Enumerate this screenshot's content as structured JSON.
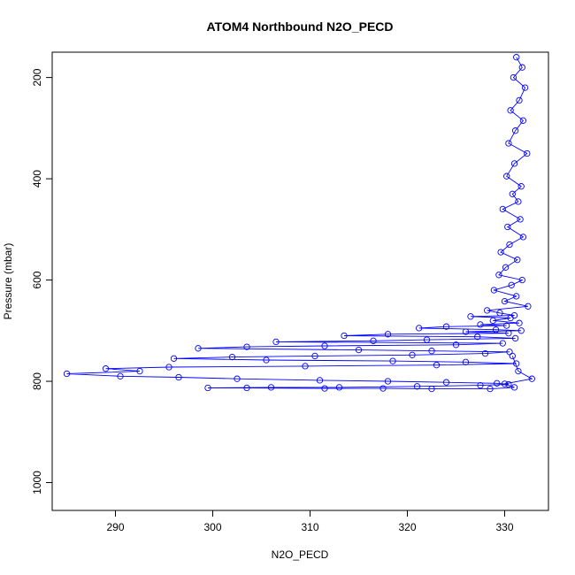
{
  "chart_data": {
    "type": "scatter",
    "title": "ATOM4 Northbound N2O_PECD",
    "xlabel": "N2O_PECD",
    "ylabel": "Pressure (mbar)",
    "xlim": [
      283.5,
      334.5
    ],
    "ylim": [
      1055,
      150
    ],
    "y_reversed": true,
    "x_ticks": [
      290,
      300,
      310,
      320,
      330
    ],
    "y_ticks": [
      200,
      400,
      600,
      800,
      1000
    ],
    "grid": false,
    "legend": "none",
    "marker": "open-circle",
    "lines_connect_points": true,
    "color": "#0000ff",
    "series": [
      {
        "x": [
          331.2,
          331.8,
          330.9,
          332.1,
          331.5,
          330.6,
          331.9,
          331.1,
          330.4,
          332.3,
          331.0,
          330.2,
          331.7,
          330.8,
          331.4,
          329.8,
          331.6,
          330.3,
          331.9,
          330.5,
          329.6,
          331.3,
          330.1,
          329.4,
          331.8,
          330.7,
          328.9,
          331.2,
          330.0,
          332.4,
          328.2,
          329.5,
          331.0,
          326.5,
          330.6,
          328.8,
          331.5,
          327.5,
          330.2,
          324.0,
          321.2,
          329.1,
          331.7,
          326.0,
          330.4,
          318.0,
          313.5,
          327.2,
          331.1,
          322.0,
          316.5,
          306.5,
          329.8,
          325.0,
          311.5,
          303.5,
          298.5,
          315.0,
          322.5,
          330.5,
          328.0,
          320.5,
          310.5,
          302.0,
          296.0,
          305.5,
          318.5,
          326.0,
          331.2,
          323.0,
          309.5,
          295.5,
          289.0,
          292.5,
          285.0,
          290.5,
          296.5,
          302.5,
          311.0,
          318.0,
          324.0,
          329.2,
          330.4,
          327.5,
          321.0,
          313.0,
          306.0,
          299.5,
          303.5,
          311.5,
          317.5,
          322.5,
          328.5,
          331.0,
          330.0,
          332.8,
          331.4,
          330.8
        ],
        "y": [
          160,
          180,
          200,
          220,
          245,
          265,
          285,
          305,
          330,
          350,
          370,
          395,
          415,
          430,
          445,
          460,
          480,
          495,
          515,
          530,
          545,
          560,
          575,
          590,
          600,
          610,
          620,
          632,
          642,
          652,
          660,
          665,
          670,
          672,
          675,
          680,
          685,
          688,
          690,
          692,
          695,
          698,
          700,
          702,
          705,
          707,
          710,
          712,
          715,
          718,
          720,
          722,
          725,
          728,
          730,
          732,
          735,
          738,
          740,
          742,
          745,
          748,
          750,
          752,
          755,
          758,
          760,
          762,
          765,
          768,
          770,
          772,
          775,
          780,
          785,
          790,
          792,
          795,
          798,
          800,
          802,
          804,
          806,
          808,
          810,
          812,
          812,
          813,
          813,
          814,
          814,
          815,
          815,
          812,
          805,
          795,
          780,
          750
        ]
      }
    ]
  }
}
